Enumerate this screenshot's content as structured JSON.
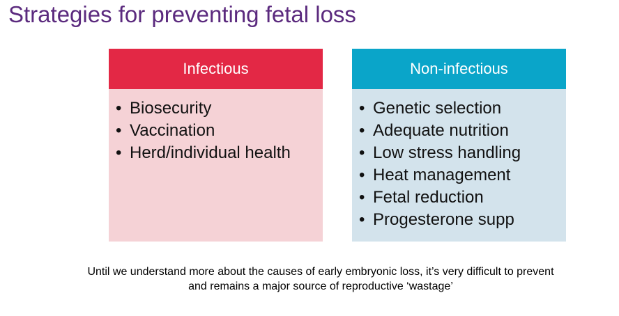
{
  "header": {
    "title": "Strategies for preventing fetal loss"
  },
  "columns": [
    {
      "title": "Infectious",
      "items": [
        "Biosecurity",
        "Vaccination",
        "Herd/individual health"
      ]
    },
    {
      "title": "Non-infectious",
      "items": [
        "Genetic selection",
        "Adequate nutrition",
        "Low stress handling",
        "Heat management",
        "Fetal reduction",
        "Progesterone supp"
      ]
    }
  ],
  "footer": {
    "note_lines": [
      "Until we understand more about the causes of early embryonic loss, it’s very difficult to prevent",
      "and remains a major source of reproductive ‘wastage’"
    ]
  }
}
